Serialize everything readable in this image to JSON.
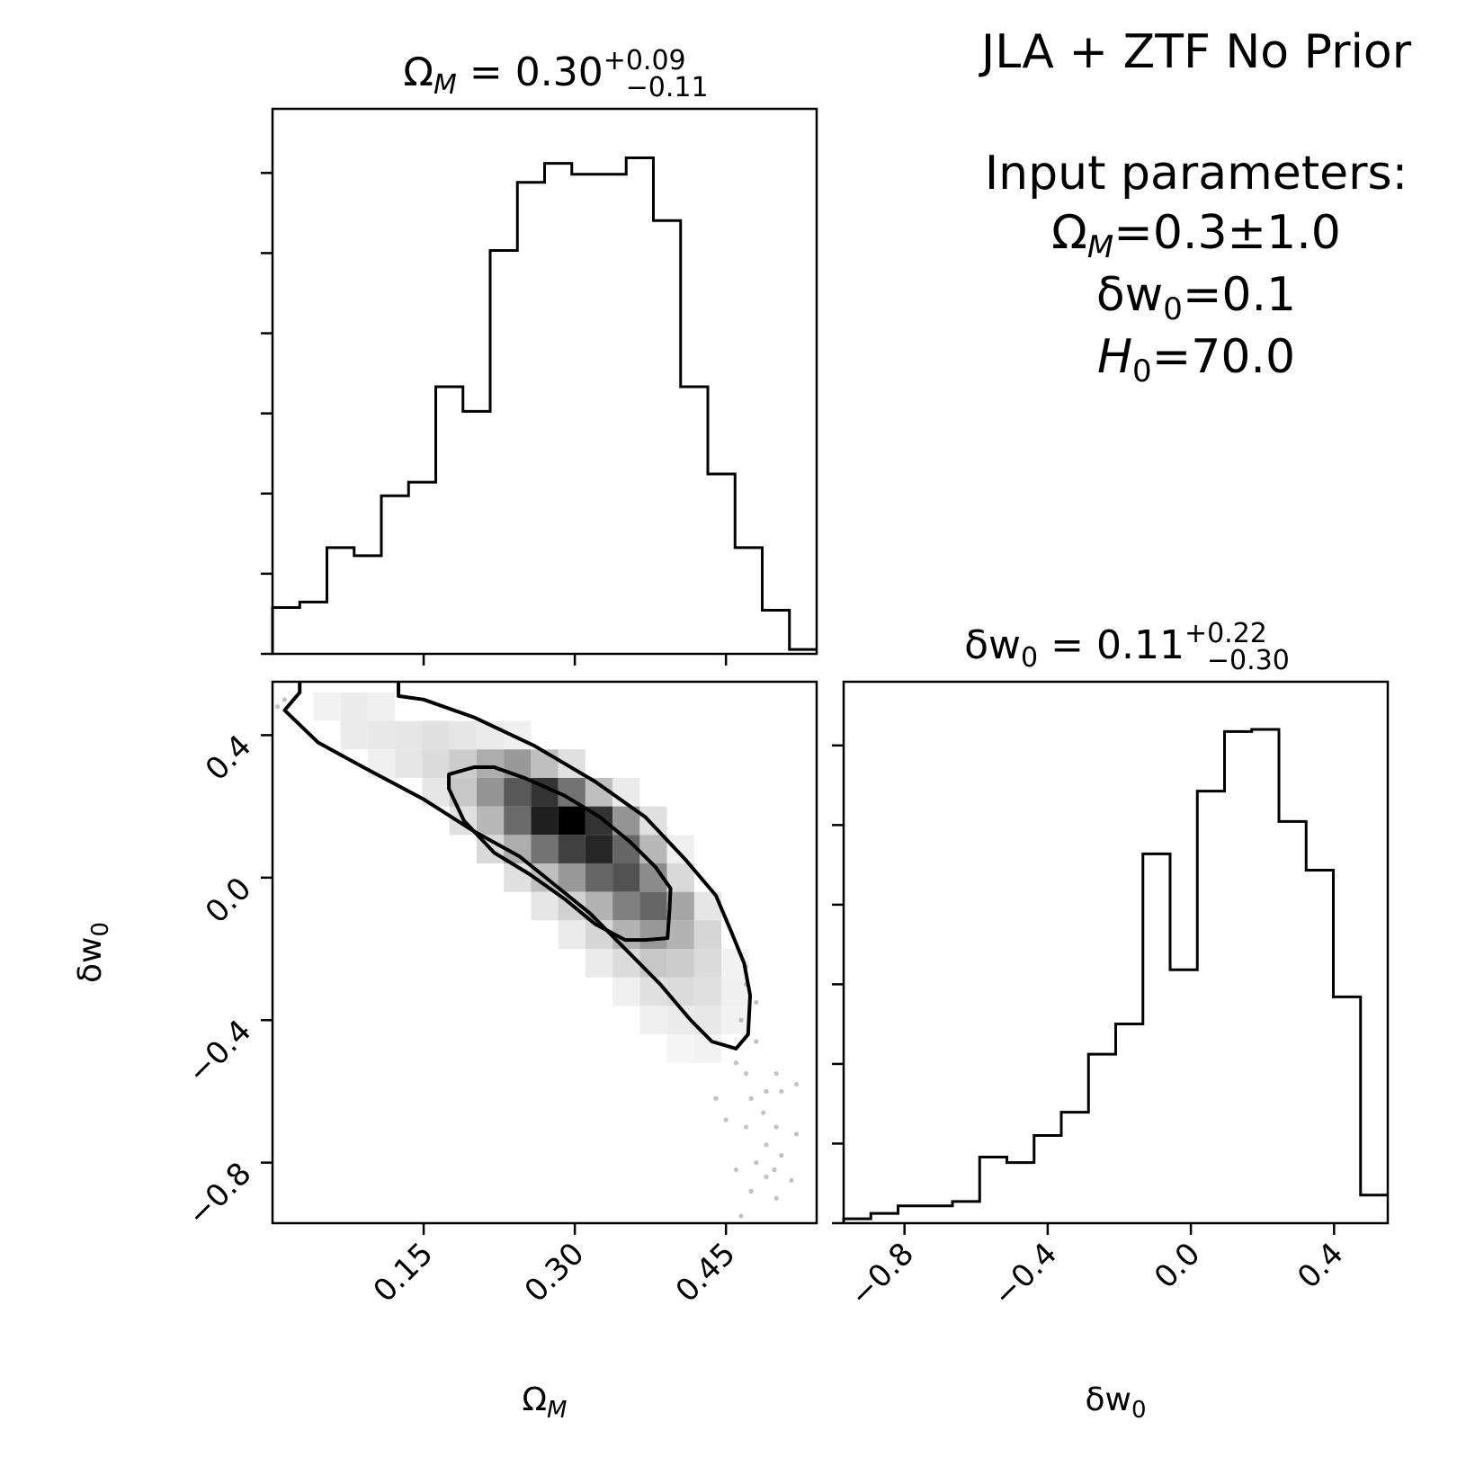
{
  "figure": {
    "title": "JLA + ZTF No Prior",
    "input_heading": "Input parameters:",
    "input_params": [
      {
        "label": "Ω",
        "sub": "M",
        "italic_sub": true,
        "value": "=0.3±1.0"
      },
      {
        "label": "δw",
        "sub": "0",
        "italic_sub": false,
        "value": "=0.1"
      },
      {
        "label": "H",
        "sub": "0",
        "italic_label": true,
        "value": "=70.0"
      }
    ]
  },
  "chart_data": [
    {
      "type": "histogram",
      "panel": "omega-m-marginal",
      "title": {
        "lhs": "Ω",
        "lhs_sub": "M",
        "eq": " = 0.30",
        "plus": "+0.09",
        "minus": "−0.11"
      },
      "xlim": [
        0.0,
        0.54
      ],
      "ylim": [
        0,
        1.0
      ],
      "bin_edges": [
        0.0,
        0.027,
        0.054,
        0.081,
        0.108,
        0.135,
        0.162,
        0.189,
        0.216,
        0.243,
        0.27,
        0.297,
        0.324,
        0.351,
        0.378,
        0.405,
        0.432,
        0.459,
        0.486,
        0.513,
        0.54
      ],
      "values": [
        0.085,
        0.095,
        0.195,
        0.18,
        0.29,
        0.315,
        0.49,
        0.445,
        0.74,
        0.865,
        0.9,
        0.88,
        0.88,
        0.91,
        0.795,
        0.49,
        0.33,
        0.195,
        0.08,
        0.008
      ]
    },
    {
      "type": "heatmap",
      "panel": "omega-m-vs-delta-w0",
      "xlabel": {
        "text": "Ω",
        "sub": "M"
      },
      "ylabel": {
        "text": "δw",
        "sub": "0"
      },
      "xlim": [
        0.0,
        0.54
      ],
      "ylim": [
        -0.97,
        0.55
      ],
      "x_ticks": [
        0.15,
        0.3,
        0.45
      ],
      "x_tick_labels": [
        "0.15",
        "0.30",
        "0.45"
      ],
      "y_ticks": [
        0.4,
        0.0,
        -0.4,
        -0.8
      ],
      "y_tick_labels": [
        "0.4",
        "0.0",
        "−0.4",
        "−0.8"
      ],
      "cells": [
        {
          "x": 0.054,
          "y": 0.48,
          "v": 0.05
        },
        {
          "x": 0.081,
          "y": 0.48,
          "v": 0.08
        },
        {
          "x": 0.108,
          "y": 0.48,
          "v": 0.06
        },
        {
          "x": 0.081,
          "y": 0.4,
          "v": 0.08
        },
        {
          "x": 0.108,
          "y": 0.4,
          "v": 0.09
        },
        {
          "x": 0.135,
          "y": 0.4,
          "v": 0.1
        },
        {
          "x": 0.162,
          "y": 0.4,
          "v": 0.12
        },
        {
          "x": 0.189,
          "y": 0.4,
          "v": 0.1
        },
        {
          "x": 0.216,
          "y": 0.4,
          "v": 0.08
        },
        {
          "x": 0.243,
          "y": 0.4,
          "v": 0.06
        },
        {
          "x": 0.108,
          "y": 0.32,
          "v": 0.06
        },
        {
          "x": 0.135,
          "y": 0.32,
          "v": 0.1
        },
        {
          "x": 0.162,
          "y": 0.32,
          "v": 0.14
        },
        {
          "x": 0.189,
          "y": 0.32,
          "v": 0.2
        },
        {
          "x": 0.216,
          "y": 0.32,
          "v": 0.32
        },
        {
          "x": 0.243,
          "y": 0.32,
          "v": 0.4
        },
        {
          "x": 0.27,
          "y": 0.32,
          "v": 0.25
        },
        {
          "x": 0.297,
          "y": 0.32,
          "v": 0.12
        },
        {
          "x": 0.162,
          "y": 0.24,
          "v": 0.1
        },
        {
          "x": 0.189,
          "y": 0.24,
          "v": 0.22
        },
        {
          "x": 0.216,
          "y": 0.24,
          "v": 0.42
        },
        {
          "x": 0.243,
          "y": 0.24,
          "v": 0.65
        },
        {
          "x": 0.27,
          "y": 0.24,
          "v": 0.8
        },
        {
          "x": 0.297,
          "y": 0.24,
          "v": 0.55
        },
        {
          "x": 0.324,
          "y": 0.24,
          "v": 0.25
        },
        {
          "x": 0.351,
          "y": 0.24,
          "v": 0.08
        },
        {
          "x": 0.189,
          "y": 0.16,
          "v": 0.12
        },
        {
          "x": 0.216,
          "y": 0.16,
          "v": 0.28
        },
        {
          "x": 0.243,
          "y": 0.16,
          "v": 0.58
        },
        {
          "x": 0.27,
          "y": 0.16,
          "v": 0.88
        },
        {
          "x": 0.297,
          "y": 0.16,
          "v": 1.0
        },
        {
          "x": 0.324,
          "y": 0.16,
          "v": 0.8
        },
        {
          "x": 0.351,
          "y": 0.16,
          "v": 0.42
        },
        {
          "x": 0.378,
          "y": 0.16,
          "v": 0.12
        },
        {
          "x": 0.216,
          "y": 0.08,
          "v": 0.15
        },
        {
          "x": 0.243,
          "y": 0.08,
          "v": 0.32
        },
        {
          "x": 0.27,
          "y": 0.08,
          "v": 0.55
        },
        {
          "x": 0.297,
          "y": 0.08,
          "v": 0.75
        },
        {
          "x": 0.324,
          "y": 0.08,
          "v": 0.85
        },
        {
          "x": 0.351,
          "y": 0.08,
          "v": 0.6
        },
        {
          "x": 0.378,
          "y": 0.08,
          "v": 0.28
        },
        {
          "x": 0.405,
          "y": 0.08,
          "v": 0.06
        },
        {
          "x": 0.243,
          "y": 0.0,
          "v": 0.12
        },
        {
          "x": 0.27,
          "y": 0.0,
          "v": 0.25
        },
        {
          "x": 0.297,
          "y": 0.0,
          "v": 0.4
        },
        {
          "x": 0.324,
          "y": 0.0,
          "v": 0.6
        },
        {
          "x": 0.351,
          "y": 0.0,
          "v": 0.68
        },
        {
          "x": 0.378,
          "y": 0.0,
          "v": 0.45
        },
        {
          "x": 0.405,
          "y": 0.0,
          "v": 0.15
        },
        {
          "x": 0.27,
          "y": -0.08,
          "v": 0.1
        },
        {
          "x": 0.297,
          "y": -0.08,
          "v": 0.18
        },
        {
          "x": 0.324,
          "y": -0.08,
          "v": 0.3
        },
        {
          "x": 0.351,
          "y": -0.08,
          "v": 0.5
        },
        {
          "x": 0.378,
          "y": -0.08,
          "v": 0.6
        },
        {
          "x": 0.405,
          "y": -0.08,
          "v": 0.35
        },
        {
          "x": 0.432,
          "y": -0.08,
          "v": 0.1
        },
        {
          "x": 0.297,
          "y": -0.16,
          "v": 0.08
        },
        {
          "x": 0.324,
          "y": -0.16,
          "v": 0.16
        },
        {
          "x": 0.351,
          "y": -0.16,
          "v": 0.3
        },
        {
          "x": 0.378,
          "y": -0.16,
          "v": 0.4
        },
        {
          "x": 0.405,
          "y": -0.16,
          "v": 0.3
        },
        {
          "x": 0.432,
          "y": -0.16,
          "v": 0.16
        },
        {
          "x": 0.324,
          "y": -0.24,
          "v": 0.08
        },
        {
          "x": 0.351,
          "y": -0.24,
          "v": 0.14
        },
        {
          "x": 0.378,
          "y": -0.24,
          "v": 0.22
        },
        {
          "x": 0.405,
          "y": -0.24,
          "v": 0.2
        },
        {
          "x": 0.432,
          "y": -0.24,
          "v": 0.14
        },
        {
          "x": 0.459,
          "y": -0.24,
          "v": 0.05
        },
        {
          "x": 0.351,
          "y": -0.32,
          "v": 0.06
        },
        {
          "x": 0.378,
          "y": -0.32,
          "v": 0.12
        },
        {
          "x": 0.405,
          "y": -0.32,
          "v": 0.14
        },
        {
          "x": 0.432,
          "y": -0.32,
          "v": 0.12
        },
        {
          "x": 0.459,
          "y": -0.32,
          "v": 0.06
        },
        {
          "x": 0.378,
          "y": -0.4,
          "v": 0.06
        },
        {
          "x": 0.405,
          "y": -0.4,
          "v": 0.08
        },
        {
          "x": 0.432,
          "y": -0.4,
          "v": 0.09
        },
        {
          "x": 0.459,
          "y": -0.4,
          "v": 0.05
        },
        {
          "x": 0.405,
          "y": -0.48,
          "v": 0.04
        },
        {
          "x": 0.432,
          "y": -0.48,
          "v": 0.05
        }
      ],
      "cell_size": {
        "dx": 0.027,
        "dy": 0.08
      },
      "contour_outer": [
        [
          0.027,
          0.55
        ],
        [
          0.027,
          0.52
        ],
        [
          0.012,
          0.47
        ],
        [
          0.045,
          0.38
        ],
        [
          0.09,
          0.31
        ],
        [
          0.15,
          0.22
        ],
        [
          0.2,
          0.13
        ],
        [
          0.245,
          0.06
        ],
        [
          0.28,
          -0.02
        ],
        [
          0.315,
          -0.1
        ],
        [
          0.35,
          -0.2
        ],
        [
          0.385,
          -0.3
        ],
        [
          0.415,
          -0.4
        ],
        [
          0.436,
          -0.46
        ],
        [
          0.46,
          -0.48
        ],
        [
          0.472,
          -0.44
        ],
        [
          0.474,
          -0.33
        ],
        [
          0.468,
          -0.24
        ],
        [
          0.455,
          -0.15
        ],
        [
          0.44,
          -0.05
        ],
        [
          0.41,
          0.05
        ],
        [
          0.37,
          0.17
        ],
        [
          0.32,
          0.27
        ],
        [
          0.26,
          0.37
        ],
        [
          0.2,
          0.45
        ],
        [
          0.15,
          0.5
        ],
        [
          0.125,
          0.51
        ],
        [
          0.125,
          0.55
        ]
      ],
      "contour_inner": [
        [
          0.175,
          0.29
        ],
        [
          0.2,
          0.31
        ],
        [
          0.22,
          0.31
        ],
        [
          0.25,
          0.28
        ],
        [
          0.29,
          0.23
        ],
        [
          0.325,
          0.17
        ],
        [
          0.355,
          0.1
        ],
        [
          0.38,
          0.03
        ],
        [
          0.395,
          -0.03
        ],
        [
          0.394,
          -0.09
        ],
        [
          0.392,
          -0.17
        ],
        [
          0.37,
          -0.175
        ],
        [
          0.35,
          -0.175
        ],
        [
          0.32,
          -0.13
        ],
        [
          0.29,
          -0.06
        ],
        [
          0.255,
          0.01
        ],
        [
          0.22,
          0.07
        ],
        [
          0.19,
          0.16
        ],
        [
          0.175,
          0.25
        ]
      ],
      "scatter": [
        [
          0.005,
          0.48
        ],
        [
          0.012,
          0.5
        ],
        [
          0.47,
          -0.25
        ],
        [
          0.47,
          -0.3
        ],
        [
          0.48,
          -0.35
        ],
        [
          0.465,
          -0.4
        ],
        [
          0.48,
          -0.46
        ],
        [
          0.46,
          -0.52
        ],
        [
          0.47,
          -0.55
        ],
        [
          0.5,
          -0.55
        ],
        [
          0.49,
          -0.6
        ],
        [
          0.505,
          -0.6
        ],
        [
          0.52,
          -0.58
        ],
        [
          0.475,
          -0.62
        ],
        [
          0.487,
          -0.66
        ],
        [
          0.47,
          -0.7
        ],
        [
          0.5,
          -0.7
        ],
        [
          0.49,
          -0.75
        ],
        [
          0.505,
          -0.78
        ],
        [
          0.48,
          -0.8
        ],
        [
          0.46,
          -0.82
        ],
        [
          0.49,
          -0.84
        ],
        [
          0.475,
          -0.88
        ],
        [
          0.5,
          -0.9
        ],
        [
          0.515,
          -0.85
        ],
        [
          0.45,
          -0.68
        ],
        [
          0.44,
          -0.62
        ],
        [
          0.52,
          -0.72
        ],
        [
          0.498,
          -0.82
        ],
        [
          0.465,
          -0.95
        ]
      ]
    },
    {
      "type": "histogram",
      "panel": "delta-w0-marginal",
      "title": {
        "lhs": "δw",
        "lhs_sub": "0",
        "eq": " = 0.11",
        "plus": "+0.22",
        "minus": "−0.30"
      },
      "xlabel": {
        "text": "δw",
        "sub": "0"
      },
      "xlim": [
        -0.97,
        0.55
      ],
      "ylim": [
        0,
        1.0
      ],
      "x_ticks": [
        -0.8,
        -0.4,
        0.0,
        0.4
      ],
      "x_tick_labels": [
        "−0.8",
        "−0.4",
        "0.0",
        "0.4"
      ],
      "bin_edges": [
        -0.97,
        -0.894,
        -0.818,
        -0.742,
        -0.666,
        -0.59,
        -0.514,
        -0.438,
        -0.362,
        -0.286,
        -0.21,
        -0.134,
        -0.058,
        0.018,
        0.094,
        0.17,
        0.246,
        0.322,
        0.398,
        0.474,
        0.55
      ],
      "values": [
        0.008,
        0.018,
        0.032,
        0.032,
        0.04,
        0.122,
        0.112,
        0.162,
        0.205,
        0.312,
        0.368,
        0.682,
        0.468,
        0.798,
        0.908,
        0.912,
        0.742,
        0.652,
        0.418,
        0.052
      ]
    }
  ]
}
